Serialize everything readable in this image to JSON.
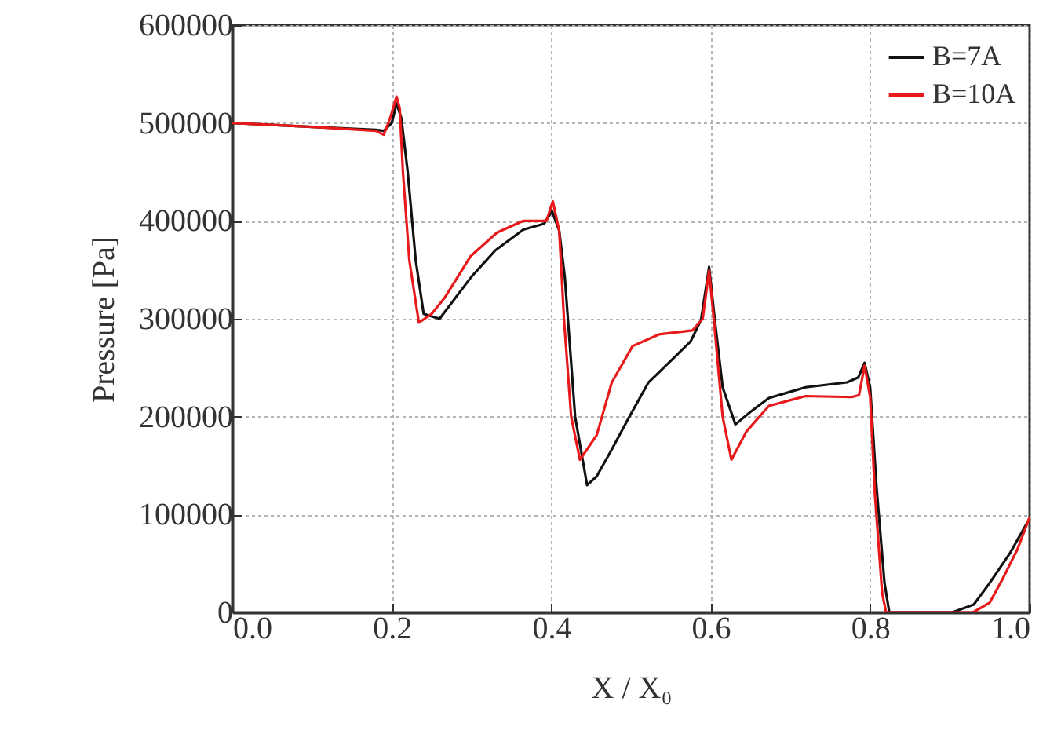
{
  "chart_data": {
    "type": "line",
    "xlabel": "X / X₀",
    "ylabel": "Pressure [Pa]",
    "xlim": [
      0,
      1
    ],
    "xticks": [
      {
        "value": 0,
        "label": "0.0"
      },
      0.2,
      0.4,
      0.6,
      0.8,
      {
        "value": 1,
        "label": "1.0"
      }
    ],
    "ylim": [
      0,
      600000
    ],
    "yticks": [
      0,
      100000,
      200000,
      300000,
      400000,
      500000,
      600000
    ],
    "grid": true,
    "legend": "top right",
    "line_style": "solid",
    "marker": "none",
    "series": [
      {
        "name": "B=7A",
        "color": "#111111",
        "x": [
          0,
          0.1,
          0.18,
          0.19,
          0.2,
          0.206,
          0.212,
          0.22,
          0.23,
          0.24,
          0.26,
          0.3,
          0.33,
          0.365,
          0.391,
          0.401,
          0.41,
          0.417,
          0.43,
          0.445,
          0.457,
          0.475,
          0.496,
          0.522,
          0.555,
          0.575,
          0.588,
          0.598,
          0.605,
          0.615,
          0.631,
          0.65,
          0.673,
          0.719,
          0.771,
          0.785,
          0.793,
          0.8,
          0.808,
          0.818,
          0.824,
          0.85,
          0.903,
          0.93,
          0.949,
          0.975,
          1.0
        ],
        "values": [
          500000,
          496000,
          493000,
          492000,
          500000,
          520000,
          505000,
          450000,
          360000,
          305000,
          300000,
          343000,
          370000,
          391000,
          397000,
          410000,
          390000,
          343000,
          200000,
          130000,
          139000,
          165000,
          197000,
          235000,
          261000,
          277000,
          299000,
          353000,
          300000,
          230000,
          192000,
          205000,
          219000,
          230000,
          235000,
          240000,
          255000,
          230000,
          128000,
          30000,
          0,
          0,
          0,
          8000,
          29000,
          60000,
          96000
        ]
      },
      {
        "name": "B=10A",
        "color": "#e8191a",
        "x": [
          0,
          0.1,
          0.18,
          0.19,
          0.198,
          0.206,
          0.21,
          0.214,
          0.222,
          0.234,
          0.25,
          0.266,
          0.299,
          0.332,
          0.365,
          0.394,
          0.402,
          0.41,
          0.416,
          0.425,
          0.436,
          0.457,
          0.476,
          0.502,
          0.535,
          0.577,
          0.59,
          0.598,
          0.605,
          0.615,
          0.626,
          0.645,
          0.673,
          0.719,
          0.777,
          0.786,
          0.793,
          0.8,
          0.806,
          0.815,
          0.82,
          0.86,
          0.929,
          0.95,
          0.968,
          0.985,
          1.0
        ],
        "values": [
          500000,
          496000,
          492000,
          488000,
          505000,
          527000,
          515000,
          450000,
          360000,
          296000,
          305000,
          321000,
          364000,
          388000,
          400000,
          400000,
          420000,
          390000,
          300000,
          200000,
          156000,
          181000,
          235000,
          272000,
          284000,
          288000,
          300000,
          349000,
          290000,
          200000,
          156000,
          185000,
          211000,
          221000,
          220000,
          222000,
          252000,
          220000,
          120000,
          20000,
          0,
          0,
          0,
          10000,
          37000,
          65000,
          97000
        ]
      }
    ]
  }
}
